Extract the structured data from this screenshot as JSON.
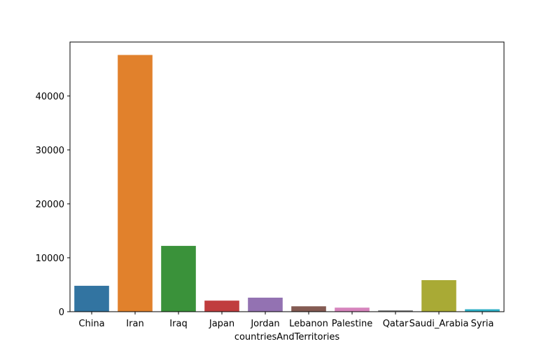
{
  "chart_data": {
    "type": "bar",
    "title": "",
    "xlabel": "countriesAndTerritories",
    "ylabel": "",
    "categories": [
      "China",
      "Iran",
      "Iraq",
      "Japan",
      "Jordan",
      "Lebanon",
      "Palestine",
      "Qatar",
      "Saudi_Arabia",
      "Syria"
    ],
    "values": [
      4800,
      47600,
      12200,
      2050,
      2600,
      1000,
      750,
      250,
      5850,
      450
    ],
    "colors": [
      "#3274a1",
      "#e1812c",
      "#3a923a",
      "#c03d3e",
      "#9372b2",
      "#845b53",
      "#d684bd",
      "#7f7f7f",
      "#a9aa35",
      "#2eb0c6"
    ],
    "ylim": [
      0,
      50000
    ],
    "yticks": [
      0,
      10000,
      20000,
      30000,
      40000
    ],
    "grid": false,
    "legend": "none"
  }
}
